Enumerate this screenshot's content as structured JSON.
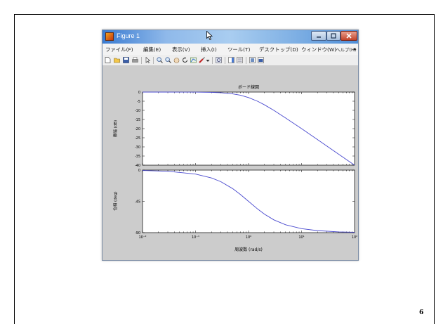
{
  "window": {
    "title": "Figure 1",
    "controls": {
      "minimize": "–",
      "maximize": "□",
      "close": "✕"
    }
  },
  "menu": [
    "ファイル(F)",
    "編集(E)",
    "表示(V)",
    "挿入(I)",
    "ツール(T)",
    "デスクトップ(D)",
    "ウィンドウ(W)",
    "ヘルプ(H)"
  ],
  "menu_overflow": "▸",
  "toolbar_icons": [
    "new-figure-icon",
    "open-file-icon",
    "save-icon",
    "print-icon",
    "pointer-icon",
    "zoom-in-icon",
    "zoom-out-icon",
    "pan-icon",
    "rotate-icon",
    "data-cursor-icon",
    "brush-icon",
    "link-icon",
    "colorbar-icon",
    "legend-icon",
    "hide-tools-icon",
    "show-tools-icon"
  ],
  "figure": {
    "title": "ボード線図",
    "xlabel": "周波数 (rad/s)",
    "magnitude_ylabel": "振幅 (dB)",
    "phase_ylabel": "位相 (deg)"
  },
  "chart_data": [
    {
      "type": "line",
      "panel": "magnitude",
      "title": "ボード線図",
      "ylabel": "振幅 (dB)",
      "x_scale": "log",
      "xlim": [
        0.01,
        100
      ],
      "ylim": [
        -40,
        0
      ],
      "yticks": [
        0,
        -5,
        -10,
        -15,
        -20,
        -25,
        -30,
        -35,
        -40
      ],
      "ytick_labels": [
        "0",
        "-5",
        "-10",
        "-15",
        "-20",
        "-25",
        "-30",
        "-35",
        "-40"
      ],
      "grid": false,
      "line_color": "#4a4acf",
      "series": [
        {
          "x": [
            0.01,
            0.03,
            0.1,
            0.2,
            0.3,
            0.5,
            0.7,
            1,
            1.5,
            2,
            3,
            5,
            10,
            20,
            50,
            100
          ],
          "values": [
            0,
            0,
            -0.04,
            -0.17,
            -0.37,
            -0.97,
            -1.7,
            -3.0,
            -5.1,
            -7.0,
            -10.0,
            -14.2,
            -20.0,
            -26.0,
            -34.0,
            -40.0
          ]
        }
      ]
    },
    {
      "type": "line",
      "panel": "phase",
      "xlabel": "周波数 (rad/s)",
      "ylabel": "位相 (deg)",
      "x_scale": "log",
      "xlim": [
        0.01,
        100
      ],
      "ylim": [
        -90,
        0
      ],
      "xticks": [
        0.01,
        0.1,
        1,
        10,
        100
      ],
      "xtick_labels": [
        "10⁻²",
        "10⁻¹",
        "10⁰",
        "10¹",
        "10²"
      ],
      "yticks": [
        0,
        -45,
        -90
      ],
      "ytick_labels": [
        "0",
        "-45",
        "-90"
      ],
      "grid": false,
      "line_color": "#4a4acf",
      "series": [
        {
          "x": [
            0.01,
            0.03,
            0.1,
            0.2,
            0.3,
            0.5,
            0.7,
            1,
            1.5,
            2,
            3,
            5,
            10,
            20,
            50,
            100
          ],
          "values": [
            -0.6,
            -1.7,
            -5.7,
            -11.3,
            -16.7,
            -26.6,
            -35.0,
            -45.0,
            -56.3,
            -63.4,
            -71.6,
            -78.7,
            -84.3,
            -87.1,
            -88.9,
            -89.4
          ]
        }
      ]
    }
  ],
  "slide": {
    "page_number": "6"
  }
}
